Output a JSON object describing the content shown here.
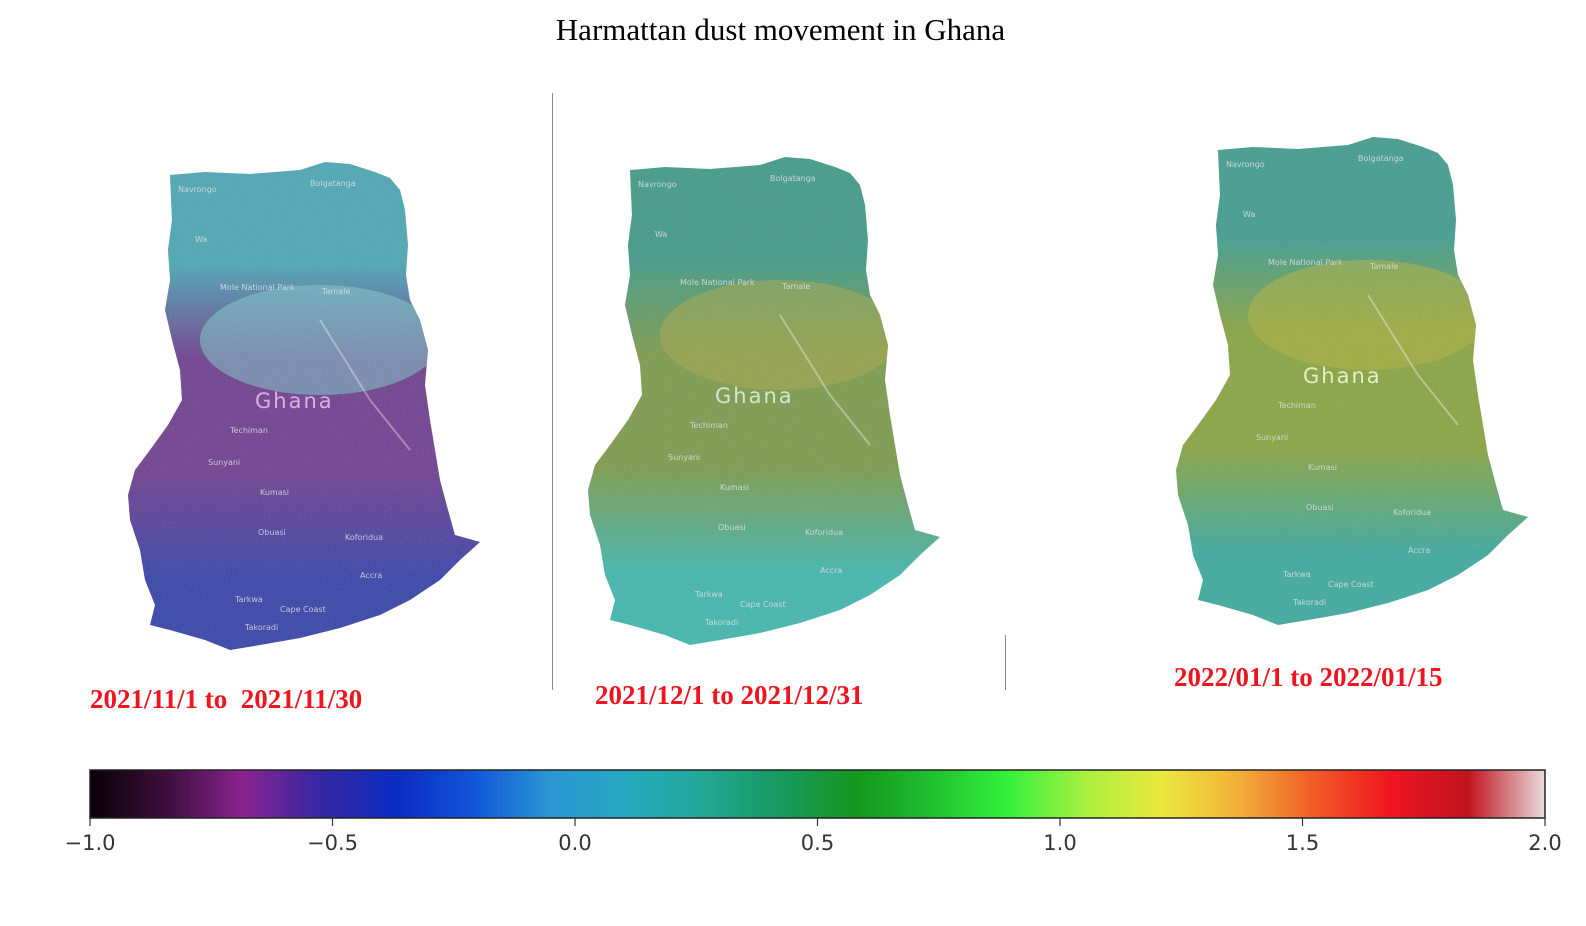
{
  "title": "Harmattan dust movement in Ghana",
  "maps": [
    {
      "period": "2021/11/1 to  2021/11/30",
      "country_label": "Ghana",
      "place_labels": [
        "Navrongo",
        "Bolgatanga",
        "Wa",
        "Mole National Park",
        "Tamale",
        "Techiman",
        "Sunyani",
        "Kumasi",
        "Obuasi",
        "Koforidua",
        "Accra",
        "Tarkwa",
        "Cape Coast",
        "Takoradi"
      ],
      "palette": {
        "north": "#4aa6b4",
        "middle": "#6e3c8e",
        "south": "#3440a8",
        "highlight": "#7dc9c9",
        "label_color": "#d9b0e6"
      }
    },
    {
      "period": "2021/12/1 to 2021/12/31",
      "country_label": "Ghana",
      "place_labels": [
        "Navrongo",
        "Bolgatanga",
        "Wa",
        "Mole National Park",
        "Tamale",
        "Techiman",
        "Sunyani",
        "Kumasi",
        "Obuasi",
        "Koforidua",
        "Accra",
        "Tarkwa",
        "Cape Coast",
        "Takoradi"
      ],
      "palette": {
        "north": "#3f9a86",
        "middle": "#7b9a4a",
        "south": "#3fb6ad",
        "highlight": "#a6a848",
        "label_color": "#d5e6cc"
      }
    },
    {
      "period": "2022/01/1 to 2022/01/15",
      "country_label": "Ghana",
      "place_labels": [
        "Navrongo",
        "Bolgatanga",
        "Wa",
        "Mole National Park",
        "Tamale",
        "Techiman",
        "Sunyani",
        "Kumasi",
        "Obuasi",
        "Koforidua",
        "Accra",
        "Tarkwa",
        "Cape Coast",
        "Takoradi"
      ],
      "palette": {
        "north": "#3f9c8e",
        "middle": "#88a43e",
        "south": "#3aa99d",
        "highlight": "#b0b23a",
        "label_color": "#e6edc7"
      }
    }
  ],
  "colorbar": {
    "min": -1.0,
    "max": 2.0,
    "tick_labels": [
      "−1.0",
      "−0.5",
      "0.0",
      "0.5",
      "1.0",
      "1.5",
      "2.0"
    ],
    "colors": [
      "#0a0008",
      "#3c0f3c",
      "#8a2390",
      "#3527a2",
      "#0c2cc2",
      "#1155d8",
      "#2a96d4",
      "#25a8c0",
      "#22a898",
      "#189a60",
      "#16961e",
      "#20c030",
      "#35f23c",
      "#a8f040",
      "#ece83e",
      "#f1b03a",
      "#f15a28",
      "#ee1520",
      "#c01420",
      "#e8dcdc"
    ]
  }
}
